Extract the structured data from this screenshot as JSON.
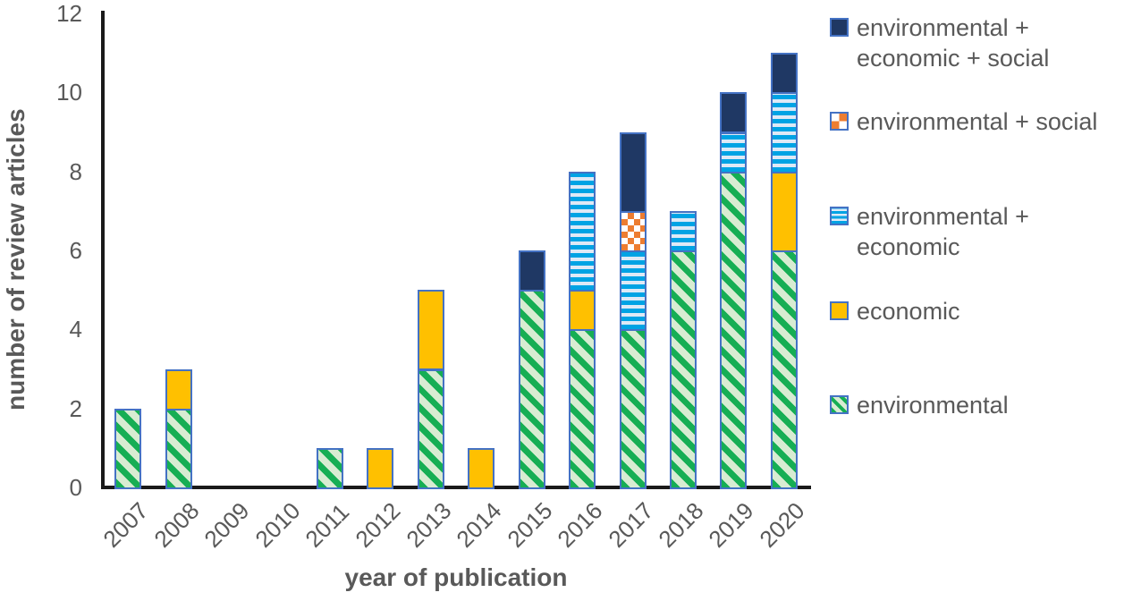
{
  "chart_data": {
    "type": "bar",
    "stacked": true,
    "title": "",
    "xlabel": "year of publication",
    "ylabel": "number of review articles",
    "ylim": [
      0,
      12
    ],
    "yticks": [
      0,
      2,
      4,
      6,
      8,
      10,
      12
    ],
    "grid": false,
    "legend_position": "right",
    "categories": [
      "2007",
      "2008",
      "2009",
      "2010",
      "2011",
      "2012",
      "2013",
      "2014",
      "2015",
      "2016",
      "2017",
      "2018",
      "2019",
      "2020"
    ],
    "series": [
      {
        "name": "environmental",
        "pattern": "green-diagonal-stripes",
        "values": [
          2,
          2,
          0,
          0,
          1,
          0,
          3,
          0,
          5,
          4,
          4,
          6,
          8,
          6
        ]
      },
      {
        "name": "economic",
        "pattern": "solid-gold",
        "values": [
          0,
          1,
          0,
          0,
          0,
          1,
          2,
          1,
          0,
          1,
          0,
          0,
          0,
          2
        ]
      },
      {
        "name": "environmental + economic",
        "pattern": "blue-horizontal-stripes",
        "values": [
          0,
          0,
          0,
          0,
          0,
          0,
          0,
          0,
          0,
          3,
          2,
          1,
          1,
          2
        ]
      },
      {
        "name": "environmental + social",
        "pattern": "orange-checkerboard",
        "values": [
          0,
          0,
          0,
          0,
          0,
          0,
          0,
          0,
          0,
          0,
          1,
          0,
          0,
          0
        ]
      },
      {
        "name": "environmental + economic + social",
        "pattern": "solid-navy",
        "values": [
          0,
          0,
          0,
          0,
          0,
          0,
          0,
          0,
          1,
          0,
          2,
          0,
          1,
          1
        ]
      }
    ]
  },
  "legend": {
    "items": [
      {
        "label": "environmental + economic + social",
        "lines": [
          "environmental +",
          "economic + social"
        ],
        "pattern": "solid-navy"
      },
      {
        "label": "environmental + social",
        "lines": [
          "environmental + social"
        ],
        "pattern": "orange-checkerboard"
      },
      {
        "label": "environmental + economic",
        "lines": [
          "environmental +",
          "economic"
        ],
        "pattern": "blue-horizontal-stripes"
      },
      {
        "label": "economic",
        "lines": [
          "economic"
        ],
        "pattern": "solid-gold"
      },
      {
        "label": "environmental",
        "lines": [
          "environmental"
        ],
        "pattern": "green-diagonal-stripes"
      }
    ]
  },
  "colors": {
    "navy": "#1F3864",
    "gold": "#FFC000",
    "green_stripe": "#16AE54",
    "green_bg": "#D8ECD2",
    "blue_stripe": "#00A3E4",
    "blue_bg": "#DEE9F6",
    "checker_orange": "#ED7D31",
    "bar_border": "#4472C4",
    "axis_line": "#1A1A1A",
    "text_gray": "#595959"
  }
}
